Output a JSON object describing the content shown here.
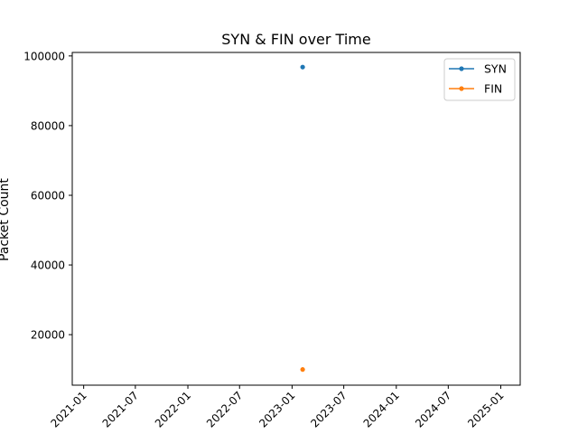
{
  "chart_data": {
    "type": "line",
    "title": "SYN & FIN over Time",
    "xlabel": "",
    "ylabel": "Packet Count",
    "x_ticks": [
      "2021-01",
      "2021-07",
      "2022-01",
      "2022-07",
      "2023-01",
      "2023-07",
      "2024-01",
      "2024-07",
      "2025-01"
    ],
    "y_ticks": [
      "20000",
      "40000",
      "60000",
      "80000",
      "100000"
    ],
    "ylim": [
      5500,
      101000
    ],
    "xlim": [
      "2020-11-22",
      "2025-03-10"
    ],
    "x": [
      "2023-02-07"
    ],
    "series": [
      {
        "name": "SYN",
        "values": [
          96800
        ],
        "color": "#1f77b4"
      },
      {
        "name": "FIN",
        "values": [
          10000
        ],
        "color": "#ff7f0e"
      }
    ],
    "legend": "top-right",
    "grid": false
  }
}
